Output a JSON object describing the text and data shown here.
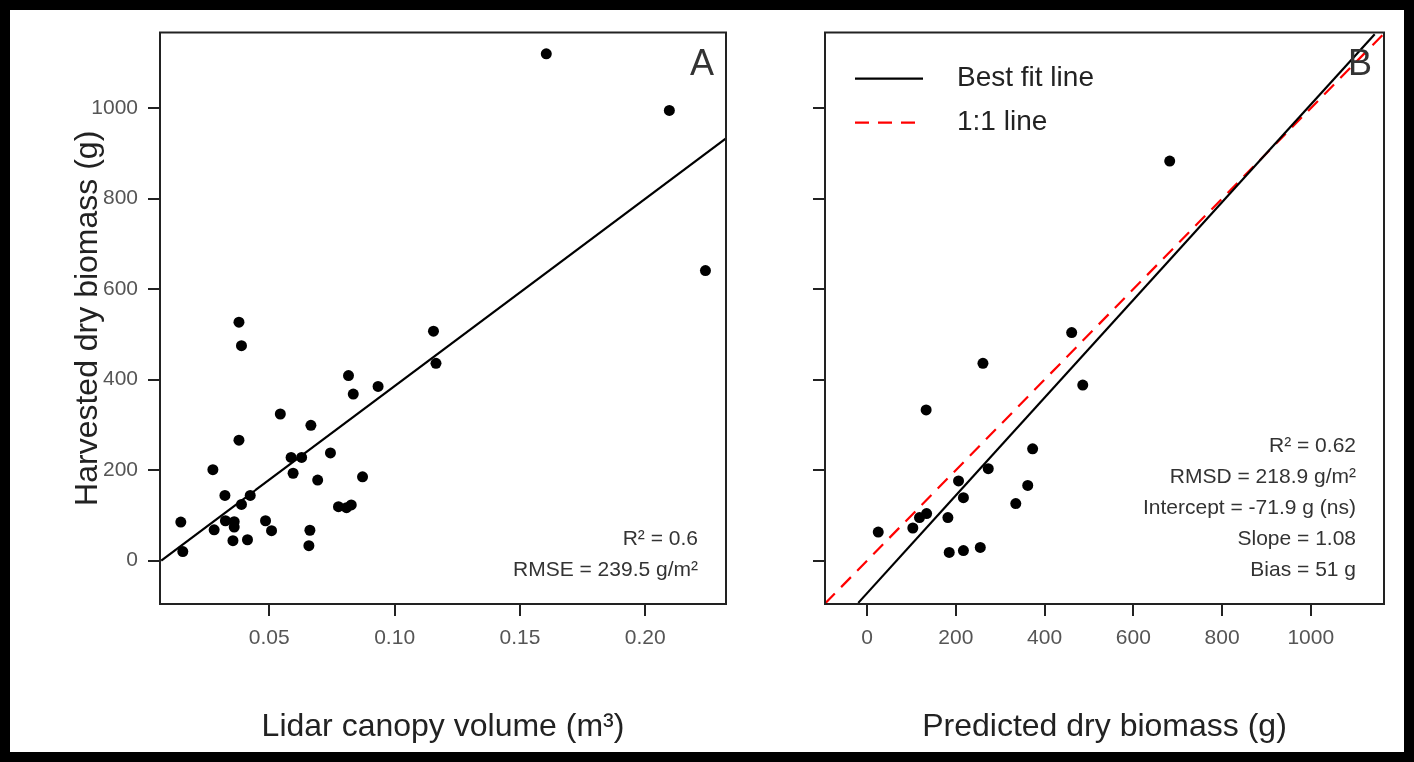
{
  "chart_data": [
    {
      "type": "scatter",
      "xlabel": "Lidar canopy volume (m³)",
      "ylabel": "Harvested dry biomass (g)",
      "xlim": [
        0.0064,
        0.2322
      ],
      "ylim": [
        -96,
        1167
      ],
      "xticks": [
        {
          "value": 0.05,
          "label": "0.05"
        },
        {
          "value": 0.1,
          "label": "0.10"
        },
        {
          "value": 0.15,
          "label": "0.15"
        },
        {
          "value": 0.2,
          "label": "0.20"
        }
      ],
      "yticks": [
        0,
        200,
        400,
        600,
        800,
        1000
      ],
      "grid": false,
      "legend": false,
      "annotations": [
        "A",
        "R² = 0.6",
        "RMSE = 239.5 g/m²"
      ],
      "series": [
        {
          "color": "#000000",
          "marker": "circle",
          "x": [
            0.1605,
            0.2096,
            0.224,
            0.1155,
            0.1165,
            0.0379,
            0.0389,
            0.0816,
            0.0835,
            0.0934,
            0.0544,
            0.0666,
            0.0379,
            0.0744,
            0.0587,
            0.0629,
            0.0595,
            0.0693,
            0.0872,
            0.0275,
            0.0323,
            0.0424,
            0.0389,
            0.0776,
            0.0808,
            0.0827,
            0.0147,
            0.0155,
            0.028,
            0.0325,
            0.036,
            0.036,
            0.0355,
            0.0413,
            0.0485,
            0.0509,
            0.0662,
            0.0658
          ],
          "values": [
            1120,
            995,
            641,
            507,
            436,
            527,
            475,
            409,
            368,
            385,
            324,
            299,
            266,
            238,
            228,
            228,
            193,
            178,
            185,
            201,
            144,
            144,
            124,
            119,
            117,
            123,
            85,
            20,
            68,
            88,
            86,
            74,
            44,
            46,
            88,
            66,
            67,
            33
          ]
        },
        {
          "type": "line",
          "color": "#000000",
          "marker": "none",
          "line_style": "solid",
          "x": [
            0.0069,
            0.2322
          ],
          "values": [
            0,
            933
          ]
        }
      ]
    },
    {
      "type": "scatter",
      "xlabel": "Predicted dry biomass (g)",
      "xlim": [
        -95,
        1165
      ],
      "ylim": [
        -96,
        1167
      ],
      "xticks": [
        0,
        200,
        400,
        600,
        800,
        1000
      ],
      "yticks": [
        0,
        200,
        400,
        600,
        800,
        1000
      ],
      "tick_labels": "x",
      "grid": false,
      "legend": "top left",
      "annotations": [
        "B",
        "R² = 0.62",
        "RMSD = 218.9 g/m²",
        "Intercept = -71.9 g (ns)",
        "Slope = 1.08",
        "Bias = 51 g"
      ],
      "series": [
        {
          "color": "#000000",
          "marker": "circle",
          "x": [
            682,
            461,
            261,
            486,
            133,
            373,
            273,
            206,
            217,
            362,
            335,
            25,
            103,
            118,
            134,
            182,
            185,
            217,
            255
          ],
          "values": [
            883,
            504,
            436,
            388,
            333,
            247,
            203,
            176,
            139,
            166,
            126,
            63,
            72,
            95,
            104,
            95,
            18,
            22,
            29
          ]
        },
        {
          "type": "line",
          "name": "Best fit line",
          "color": "#000000",
          "marker": "none",
          "line_style": "solid",
          "x": [
            -20,
            1144
          ],
          "values": [
            -93.5,
            1163.6
          ]
        },
        {
          "type": "line",
          "name": "1:1 line",
          "color": "#ff0000",
          "marker": "none",
          "line_style": "dashed",
          "x": [
            -95,
            1165
          ],
          "values": [
            -95,
            1165
          ]
        }
      ]
    }
  ]
}
